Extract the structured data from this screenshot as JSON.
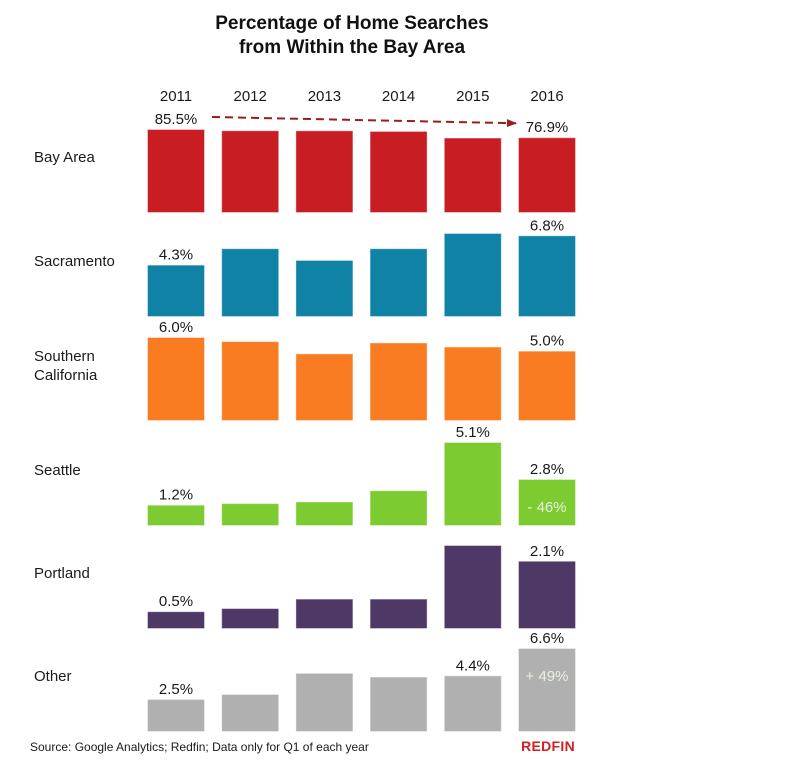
{
  "chart_data": {
    "type": "bar",
    "layout": "small-multiples",
    "title": "Percentage of Home Searches from Within the Bay Area",
    "title_lines": [
      "Percentage of Home Searches",
      "from Within the Bay Area"
    ],
    "categories": [
      "2011",
      "2012",
      "2013",
      "2014",
      "2015",
      "2016"
    ],
    "xlabel": "",
    "ylabel": "",
    "grid": false,
    "series": [
      {
        "name": "Bay Area",
        "label_lines": [
          "Bay Area"
        ],
        "color": "#c81e23",
        "values": [
          85.5,
          84.2,
          84.1,
          83.5,
          76.6,
          76.9
        ],
        "data_labels": {
          "0": "85.5%",
          "5": "76.9%"
        }
      },
      {
        "name": "Sacramento",
        "label_lines": [
          "Sacramento"
        ],
        "color": "#0f82a5",
        "values": [
          4.3,
          5.7,
          4.7,
          5.7,
          7.0,
          6.8
        ],
        "data_labels": {
          "0": "4.3%",
          "5": "6.8%"
        }
      },
      {
        "name": "Southern California",
        "label_lines": [
          "Southern",
          "California"
        ],
        "color": "#f97c22",
        "values": [
          6.0,
          5.7,
          4.8,
          5.6,
          5.3,
          5.0
        ],
        "data_labels": {
          "0": "6.0%",
          "5": "5.0%"
        }
      },
      {
        "name": "Seattle",
        "label_lines": [
          "Seattle"
        ],
        "color": "#7ccc31",
        "values": [
          1.2,
          1.3,
          1.4,
          2.1,
          5.1,
          2.8
        ],
        "data_labels": {
          "0": "1.2%",
          "4": "5.1%",
          "5": "2.8%"
        },
        "inner_label": {
          "index": 5,
          "text": "- 46%"
        }
      },
      {
        "name": "Portland",
        "label_lines": [
          "Portland"
        ],
        "color": "#4e3866",
        "values": [
          0.5,
          0.6,
          0.9,
          0.9,
          2.6,
          2.1
        ],
        "data_labels": {
          "0": "0.5%",
          "5": "2.1%"
        }
      },
      {
        "name": "Other",
        "label_lines": [
          "Other"
        ],
        "color": "#b0b0b0",
        "values": [
          2.5,
          2.9,
          4.6,
          4.3,
          4.4,
          6.6
        ],
        "data_labels": {
          "0": "2.5%",
          "4": "4.4%",
          "5": "6.6%"
        },
        "inner_label": {
          "index": 5,
          "text": "+ 49%"
        }
      }
    ],
    "annotations": [
      {
        "type": "dashed-arrow",
        "series": "Bay Area",
        "from": "2011",
        "to": "2016",
        "color": "#9b1c1c"
      }
    ],
    "source": "Source: Google Analytics; Redfin; Data only for Q1 of each year"
  },
  "brand": "REDFIN"
}
